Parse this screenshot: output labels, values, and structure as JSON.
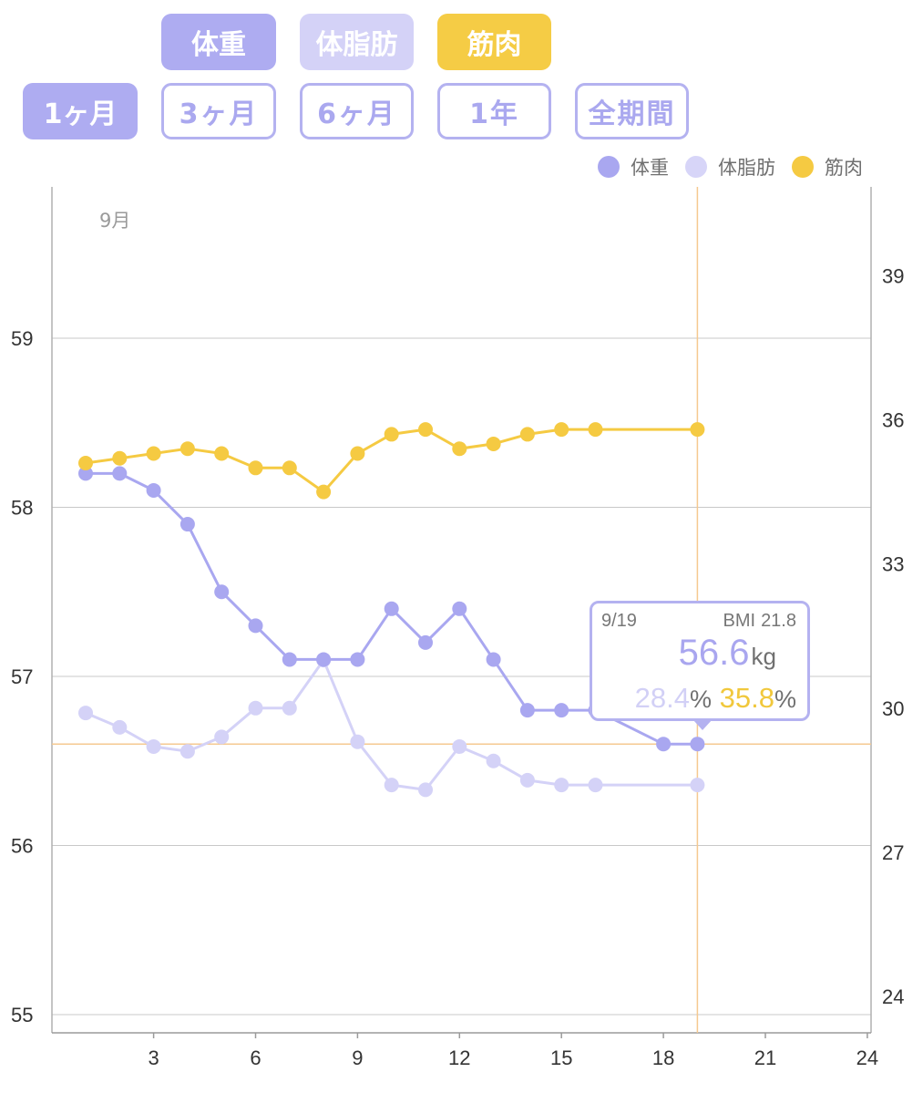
{
  "metric_buttons": [
    {
      "label": "体重",
      "color": "#aeacf1"
    },
    {
      "label": "体脂肪",
      "color": "#d4d2f7"
    },
    {
      "label": "筋肉",
      "color": "#f5cc45"
    }
  ],
  "period_buttons": [
    {
      "label": "1ヶ月",
      "selected": true
    },
    {
      "label": "3ヶ月",
      "selected": false
    },
    {
      "label": "6ヶ月",
      "selected": false
    },
    {
      "label": "1年",
      "selected": false
    },
    {
      "label": "全期間",
      "selected": false
    }
  ],
  "legend": [
    {
      "label": "体重",
      "color": "#a9a7f0"
    },
    {
      "label": "体脂肪",
      "color": "#d7d5f8"
    },
    {
      "label": "筋肉",
      "color": "#f5ca42"
    }
  ],
  "tooltip": {
    "date": "9/19",
    "bmi_label": "BMI",
    "bmi_value": "21.8",
    "weight": "56.6",
    "weight_unit": "kg",
    "fat": "28.4",
    "muscle": "35.8",
    "pct_unit": "%"
  },
  "chart_data": {
    "type": "line",
    "month_label": "9月",
    "x_ticks": [
      3,
      6,
      9,
      12,
      15,
      18,
      21,
      24
    ],
    "x_range": [
      0,
      24
    ],
    "y_left": {
      "ticks": [
        55,
        56,
        57,
        58,
        59
      ],
      "range": [
        54.92,
        59.9
      ]
    },
    "y_right": {
      "ticks": [
        24,
        27,
        30,
        33,
        36,
        39
      ],
      "range": [
        23.4,
        40.1
      ]
    },
    "selected_x": 19,
    "selected_weight": 56.6,
    "series": [
      {
        "name": "体重",
        "axis": "left",
        "color": "#a9a7f0",
        "x": [
          1,
          2,
          3,
          4,
          5,
          6,
          7,
          8,
          9,
          10,
          11,
          12,
          13,
          14,
          15,
          16,
          18,
          19
        ],
        "values": [
          58.2,
          58.2,
          58.1,
          57.9,
          57.5,
          57.3,
          57.1,
          57.1,
          57.1,
          57.4,
          57.2,
          57.4,
          57.1,
          56.8,
          56.8,
          56.8,
          56.6,
          56.6
        ]
      },
      {
        "name": "体脂肪",
        "axis": "right",
        "color": "#d4d2f7",
        "x": [
          1,
          2,
          3,
          4,
          5,
          6,
          7,
          8,
          9,
          10,
          11,
          12,
          13,
          14,
          15,
          16,
          19
        ],
        "values": [
          29.9,
          29.6,
          29.2,
          29.1,
          29.4,
          30.0,
          30.0,
          31.0,
          29.3,
          28.4,
          28.3,
          29.2,
          28.9,
          28.5,
          28.4,
          28.4,
          28.4
        ]
      },
      {
        "name": "筋肉",
        "axis": "right",
        "color": "#f5ca42",
        "x": [
          1,
          2,
          3,
          4,
          5,
          6,
          7,
          8,
          9,
          10,
          11,
          12,
          13,
          14,
          15,
          16,
          19
        ],
        "values": [
          35.1,
          35.2,
          35.3,
          35.4,
          35.3,
          35.0,
          35.0,
          34.5,
          35.3,
          35.7,
          35.8,
          35.4,
          35.5,
          35.7,
          35.8,
          35.8,
          35.8
        ]
      }
    ]
  }
}
